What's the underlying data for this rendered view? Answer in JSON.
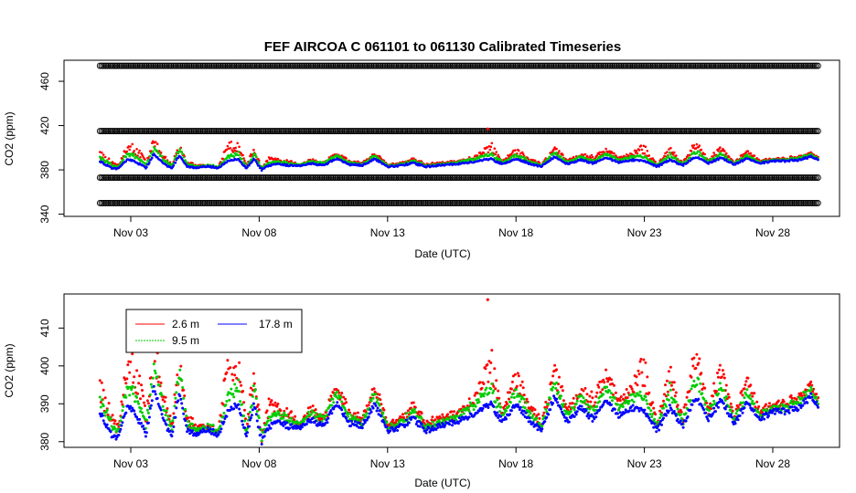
{
  "chart_data": [
    {
      "type": "scatter",
      "title": "FEF   AIRCOA  C    061101  to  061130   Calibrated Timeseries",
      "xlabel": "Date (UTC)",
      "ylabel": "CO2 (ppm)",
      "x_ticks": [
        "Nov 03",
        "Nov 08",
        "Nov 13",
        "Nov 18",
        "Nov 23",
        "Nov 28"
      ],
      "x_tick_days": [
        3,
        8,
        13,
        18,
        23,
        28
      ],
      "xlim_days": [
        0.4,
        30.6
      ],
      "y_ticks": [
        340,
        380,
        420,
        460
      ],
      "ylim": [
        338,
        479
      ],
      "calibration_levels_ppm": [
        474,
        415,
        373,
        350
      ],
      "calibration_span_days": [
        1.8,
        29.8
      ],
      "series": [
        {
          "name": "2.6 m",
          "color": "#ff0000",
          "values": "see shared profile"
        },
        {
          "name": "9.5 m",
          "color": "#00cc00",
          "values": "see shared profile"
        },
        {
          "name": "17.8 m",
          "color": "#0000ff",
          "values": "see shared profile"
        }
      ]
    },
    {
      "type": "scatter",
      "xlabel": "Date (UTC)",
      "ylabel": "CO2 (ppm)",
      "x_ticks": [
        "Nov 03",
        "Nov 08",
        "Nov 13",
        "Nov 18",
        "Nov 23",
        "Nov 28"
      ],
      "x_tick_days": [
        3,
        8,
        13,
        18,
        23,
        28
      ],
      "xlim_days": [
        0.4,
        30.6
      ],
      "y_ticks": [
        380,
        390,
        400,
        410
      ],
      "ylim": [
        378.5,
        419
      ],
      "legend": {
        "position": "top-left",
        "entries": [
          {
            "label": "2.6 m",
            "color": "#ff0000"
          },
          {
            "label": "9.5 m",
            "color": "#00cc00"
          },
          {
            "label": "17.8 m",
            "color": "#0000ff"
          }
        ]
      },
      "series": [
        {
          "name": "2.6 m",
          "color": "#ff0000"
        },
        {
          "name": "9.5 m",
          "color": "#00cc00"
        },
        {
          "name": "17.8 m",
          "color": "#0000ff"
        }
      ]
    }
  ],
  "profile": {
    "description_days_and_blue_baseline_ppm": true,
    "days": [
      1.8,
      2.2,
      2.5,
      2.9,
      3.2,
      3.6,
      3.9,
      4.3,
      4.6,
      4.9,
      5.2,
      5.6,
      6.0,
      6.4,
      6.8,
      7.2,
      7.5,
      7.8,
      8.1,
      8.4,
      8.8,
      9.2,
      9.6,
      10.0,
      10.5,
      11.0,
      11.5,
      12.0,
      12.5,
      13.0,
      13.5,
      14.0,
      14.5,
      15.0,
      15.5,
      16.0,
      16.5,
      17.0,
      17.5,
      18.0,
      18.5,
      19.0,
      19.5,
      20.0,
      20.5,
      21.0,
      21.5,
      22.0,
      22.5,
      23.0,
      23.5,
      24.0,
      24.5,
      25.0,
      25.5,
      26.0,
      26.5,
      27.0,
      27.5,
      28.0,
      28.5,
      29.0,
      29.5,
      29.8
    ],
    "blue": [
      388,
      382,
      381,
      390,
      387,
      382,
      394,
      385,
      382,
      393,
      383,
      382,
      383,
      382,
      388,
      390,
      381,
      390,
      380,
      384,
      385,
      384,
      384,
      386,
      384,
      390,
      385,
      384,
      390,
      383,
      384,
      386,
      383,
      384,
      385,
      386,
      388,
      390,
      385,
      390,
      386,
      383,
      392,
      385,
      389,
      386,
      391,
      387,
      389,
      388,
      383,
      389,
      384,
      392,
      386,
      391,
      385,
      390,
      386,
      388,
      388,
      389,
      392,
      389
    ],
    "green_offset": [
      4,
      3,
      2,
      6,
      5,
      3,
      6,
      4,
      2,
      7,
      2,
      1,
      1,
      1,
      4,
      6,
      1,
      5,
      1,
      3,
      2,
      2,
      1,
      2,
      2,
      3,
      2,
      1,
      3,
      1,
      1,
      2,
      1,
      1,
      1,
      2,
      3,
      5,
      2,
      4,
      2,
      1,
      4,
      2,
      3,
      2,
      4,
      2,
      3,
      4,
      1,
      5,
      1,
      6,
      2,
      4,
      1,
      3,
      1,
      1,
      1,
      2,
      2,
      1
    ],
    "red_offset": [
      7,
      5,
      3,
      11,
      12,
      5,
      12,
      6,
      3,
      9,
      3,
      2,
      1,
      1,
      14,
      13,
      2,
      9,
      1,
      6,
      3,
      3,
      1,
      3,
      2,
      5,
      3,
      2,
      5,
      2,
      2,
      3,
      2,
      2,
      2,
      3,
      5,
      12,
      3,
      8,
      4,
      2,
      7,
      4,
      4,
      5,
      7,
      4,
      5,
      12,
      2,
      9,
      2,
      12,
      3,
      8,
      2,
      6,
      2,
      2,
      2,
      3,
      3,
      2
    ]
  }
}
